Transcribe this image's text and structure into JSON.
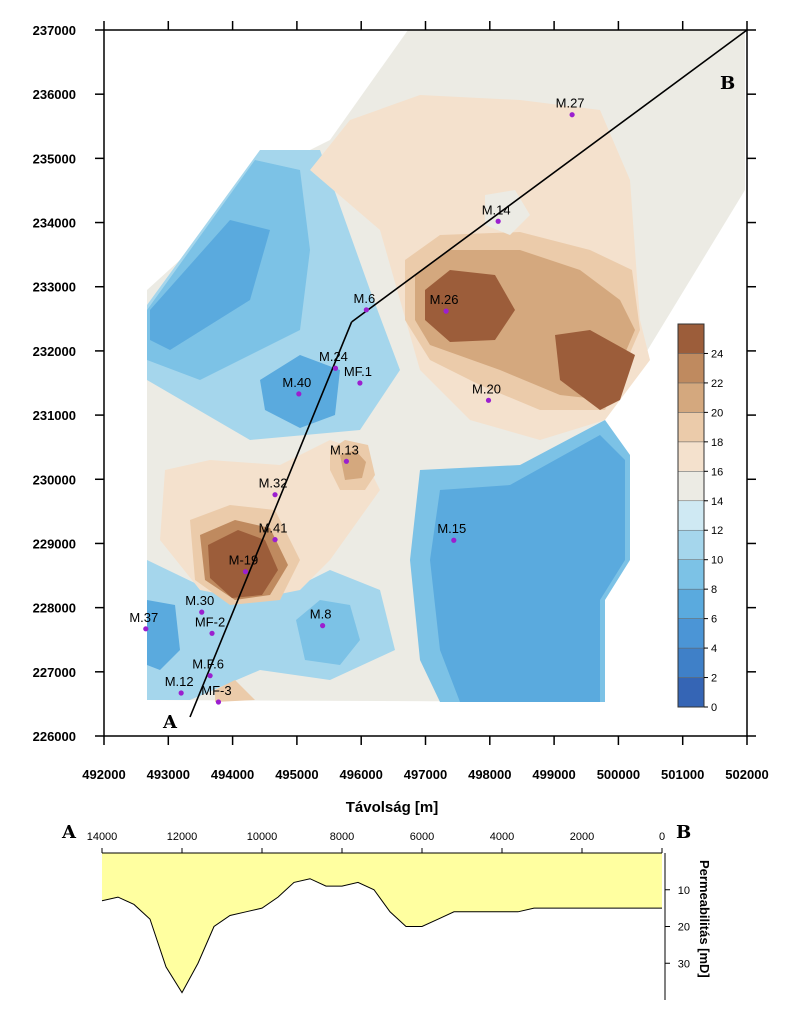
{
  "map": {
    "x_ticks": [
      "492000",
      "493000",
      "494000",
      "495000",
      "496000",
      "497000",
      "498000",
      "499000",
      "500000",
      "501000",
      "502000"
    ],
    "y_ticks": [
      "237000",
      "236000",
      "235000",
      "234000",
      "233000",
      "232000",
      "231000",
      "230000",
      "229000",
      "228000",
      "227000",
      "226000"
    ],
    "x_title": "Távolság [m]",
    "label_a": "A",
    "label_b": "B",
    "section_line": {
      "from": "A",
      "via": [
        [
          495850,
          232450
        ]
      ],
      "to": "B"
    },
    "wells": [
      {
        "name": "M.27",
        "x": 499280,
        "y": 235680
      },
      {
        "name": "M.14",
        "x": 498130,
        "y": 234020
      },
      {
        "name": "M.6",
        "x": 496080,
        "y": 232640
      },
      {
        "name": "M.26",
        "x": 497320,
        "y": 232620
      },
      {
        "name": "M.24",
        "x": 495600,
        "y": 231730
      },
      {
        "name": "MF.1",
        "x": 495980,
        "y": 231500
      },
      {
        "name": "M.40",
        "x": 495030,
        "y": 231330
      },
      {
        "name": "M.20",
        "x": 497980,
        "y": 231230
      },
      {
        "name": "M.13",
        "x": 495770,
        "y": 230280
      },
      {
        "name": "M.32",
        "x": 494660,
        "y": 229760
      },
      {
        "name": "M.41",
        "x": 494660,
        "y": 229060
      },
      {
        "name": "M.15",
        "x": 497440,
        "y": 229050
      },
      {
        "name": "M-19",
        "x": 494200,
        "y": 228560
      },
      {
        "name": "M.30",
        "x": 493520,
        "y": 227930
      },
      {
        "name": "M.8",
        "x": 495400,
        "y": 227720
      },
      {
        "name": "M.37",
        "x": 492650,
        "y": 227670
      },
      {
        "name": "MF-2",
        "x": 493680,
        "y": 227600
      },
      {
        "name": "M.F.6",
        "x": 493650,
        "y": 226940
      },
      {
        "name": "M.12",
        "x": 493200,
        "y": 226670
      },
      {
        "name": "MF-3",
        "x": 493780,
        "y": 226530
      }
    ]
  },
  "colorbar": {
    "labels": [
      "0",
      "2",
      "4",
      "6",
      "8",
      "10",
      "12",
      "14",
      "16",
      "18",
      "20",
      "22",
      "24"
    ],
    "max": 26,
    "colors": [
      "#3565b5",
      "#3f80c8",
      "#4b95d6",
      "#5aaade",
      "#7cc2e6",
      "#a5d6ec",
      "#cfe9f3",
      "#ecebe4",
      "#f4e1cd",
      "#ebcbaa",
      "#d4a87e",
      "#bf8a5f",
      "#9c5d3a"
    ]
  },
  "profile": {
    "label_a": "A",
    "label_b": "B",
    "x_ticks": [
      "14000",
      "12000",
      "10000",
      "8000",
      "6000",
      "4000",
      "2000",
      "0"
    ],
    "y_ticks": [
      "10",
      "20",
      "30"
    ],
    "y_title": "Permeabilitás [mD]",
    "fill_color": "#ffffa0",
    "chart_data": {
      "type": "area",
      "x": [
        14000,
        13600,
        13200,
        12800,
        12400,
        12000,
        11600,
        11200,
        10800,
        10400,
        10000,
        9600,
        9200,
        8800,
        8400,
        8000,
        7600,
        7200,
        6800,
        6400,
        6000,
        5600,
        5200,
        4800,
        4400,
        4000,
        3600,
        3200,
        2800,
        2400,
        2000,
        1600,
        1200,
        800,
        400,
        0
      ],
      "y": [
        13,
        12,
        14,
        18,
        31,
        38,
        30,
        20,
        17,
        16,
        15,
        12,
        8,
        7,
        9,
        9,
        8,
        10,
        16,
        20,
        20,
        18,
        16,
        16,
        16,
        16,
        16,
        15,
        15,
        15,
        15,
        15,
        15,
        15,
        15,
        15
      ]
    }
  }
}
